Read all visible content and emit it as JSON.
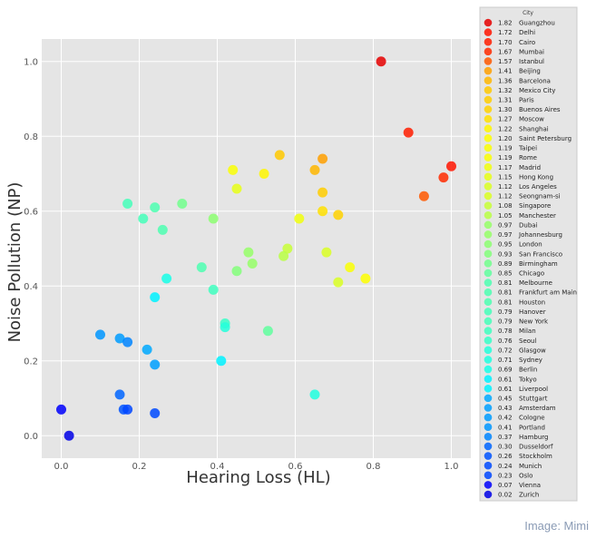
{
  "chart_data": {
    "type": "scatter",
    "title": "",
    "xlabel": "Hearing Loss (HL)",
    "ylabel": "Noise Pollution (NP)",
    "xlim": [
      -0.05,
      1.05
    ],
    "ylim": [
      -0.06,
      1.06
    ],
    "x_ticks": [
      "0.0",
      "0.2",
      "0.4",
      "0.6",
      "0.8",
      "1.0"
    ],
    "y_ticks": [
      "0.0",
      "0.2",
      "0.4",
      "0.6",
      "0.8",
      "1.0"
    ],
    "grid": true,
    "legend_title": "City",
    "legend_placement": "right, outside plot",
    "colormap": "jet",
    "points": [
      {
        "city": "Guangzhou",
        "score": "1.82",
        "x": 0.82,
        "y": 1.0
      },
      {
        "city": "Delhi",
        "score": "1.72",
        "x": 1.0,
        "y": 0.72
      },
      {
        "city": "Cairo",
        "score": "1.70",
        "x": 0.89,
        "y": 0.81
      },
      {
        "city": "Mumbai",
        "score": "1.67",
        "x": 0.98,
        "y": 0.69
      },
      {
        "city": "Istanbul",
        "score": "1.57",
        "x": 0.93,
        "y": 0.64
      },
      {
        "city": "Beijing",
        "score": "1.41",
        "x": 0.67,
        "y": 0.74
      },
      {
        "city": "Barcelona",
        "score": "1.36",
        "x": 0.65,
        "y": 0.71
      },
      {
        "city": "Mexico City",
        "score": "1.32",
        "x": 0.56,
        "y": 0.75
      },
      {
        "city": "Paris",
        "score": "1.31",
        "x": 0.67,
        "y": 0.65
      },
      {
        "city": "Buenos Aires",
        "score": "1.30",
        "x": 0.71,
        "y": 0.59
      },
      {
        "city": "Moscow",
        "score": "1.27",
        "x": 0.67,
        "y": 0.6
      },
      {
        "city": "Shanghai",
        "score": "1.22",
        "x": 0.52,
        "y": 0.7
      },
      {
        "city": "Saint Petersburg",
        "score": "1.20",
        "x": 0.78,
        "y": 0.42
      },
      {
        "city": "Taipei",
        "score": "1.19",
        "x": 0.74,
        "y": 0.45
      },
      {
        "city": "Rome",
        "score": "1.19",
        "x": 0.44,
        "y": 0.71
      },
      {
        "city": "Madrid",
        "score": "1.17",
        "x": 0.61,
        "y": 0.58
      },
      {
        "city": "Hong Kong",
        "score": "1.15",
        "x": 0.45,
        "y": 0.66
      },
      {
        "city": "Los Angeles",
        "score": "1.12",
        "x": 0.68,
        "y": 0.49
      },
      {
        "city": "Seongnam-si",
        "score": "1.12",
        "x": 0.71,
        "y": 0.41
      },
      {
        "city": "Singapore",
        "score": "1.08",
        "x": 0.58,
        "y": 0.5
      },
      {
        "city": "Manchester",
        "score": "1.05",
        "x": 0.57,
        "y": 0.48
      },
      {
        "city": "Dubai",
        "score": "0.97",
        "x": 0.48,
        "y": 0.49
      },
      {
        "city": "Johannesburg",
        "score": "0.97",
        "x": 0.49,
        "y": 0.46
      },
      {
        "city": "London",
        "score": "0.95",
        "x": 0.39,
        "y": 0.58
      },
      {
        "city": "San Francisco",
        "score": "0.93",
        "x": 0.45,
        "y": 0.44
      },
      {
        "city": "Birmingham",
        "score": "0.89",
        "x": 0.31,
        "y": 0.62
      },
      {
        "city": "Chicago",
        "score": "0.85",
        "x": 0.53,
        "y": 0.28
      },
      {
        "city": "Melbourne",
        "score": "0.81",
        "x": 0.24,
        "y": 0.61
      },
      {
        "city": "Frankfurt am Main",
        "score": "0.81",
        "x": 0.26,
        "y": 0.55
      },
      {
        "city": "Houston",
        "score": "0.81",
        "x": 0.36,
        "y": 0.45
      },
      {
        "city": "Hanover",
        "score": "0.79",
        "x": 0.17,
        "y": 0.62
      },
      {
        "city": "New York",
        "score": "0.79",
        "x": 0.21,
        "y": 0.58
      },
      {
        "city": "Milan",
        "score": "0.78",
        "x": 0.39,
        "y": 0.39
      },
      {
        "city": "Seoul",
        "score": "0.76",
        "x": 0.42,
        "y": 0.3
      },
      {
        "city": "Glasgow",
        "score": "0.72",
        "x": 0.42,
        "y": 0.29
      },
      {
        "city": "Sydney",
        "score": "0.71",
        "x": 0.65,
        "y": 0.11
      },
      {
        "city": "Berlin",
        "score": "0.69",
        "x": 0.27,
        "y": 0.42
      },
      {
        "city": "Tokyo",
        "score": "0.61",
        "x": 0.24,
        "y": 0.37
      },
      {
        "city": "Liverpool",
        "score": "0.61",
        "x": 0.41,
        "y": 0.2
      },
      {
        "city": "Stuttgart",
        "score": "0.45",
        "x": 0.22,
        "y": 0.23
      },
      {
        "city": "Amsterdam",
        "score": "0.43",
        "x": 0.24,
        "y": 0.19
      },
      {
        "city": "Cologne",
        "score": "0.42",
        "x": 0.15,
        "y": 0.26
      },
      {
        "city": "Portland",
        "score": "0.41",
        "x": 0.1,
        "y": 0.27
      },
      {
        "city": "Hamburg",
        "score": "0.37",
        "x": 0.17,
        "y": 0.25
      },
      {
        "city": "Dusseldorf",
        "score": "0.30",
        "x": 0.15,
        "y": 0.11
      },
      {
        "city": "Stockholm",
        "score": "0.26",
        "x": 0.16,
        "y": 0.07
      },
      {
        "city": "Munich",
        "score": "0.24",
        "x": 0.24,
        "y": 0.06
      },
      {
        "city": "Oslo",
        "score": "0.23",
        "x": 0.17,
        "y": 0.07
      },
      {
        "city": "Vienna",
        "score": "0.07",
        "x": 0.0,
        "y": 0.07
      },
      {
        "city": "Zurich",
        "score": "0.02",
        "x": 0.02,
        "y": 0.0
      }
    ]
  },
  "credit": "Image: Mimi"
}
